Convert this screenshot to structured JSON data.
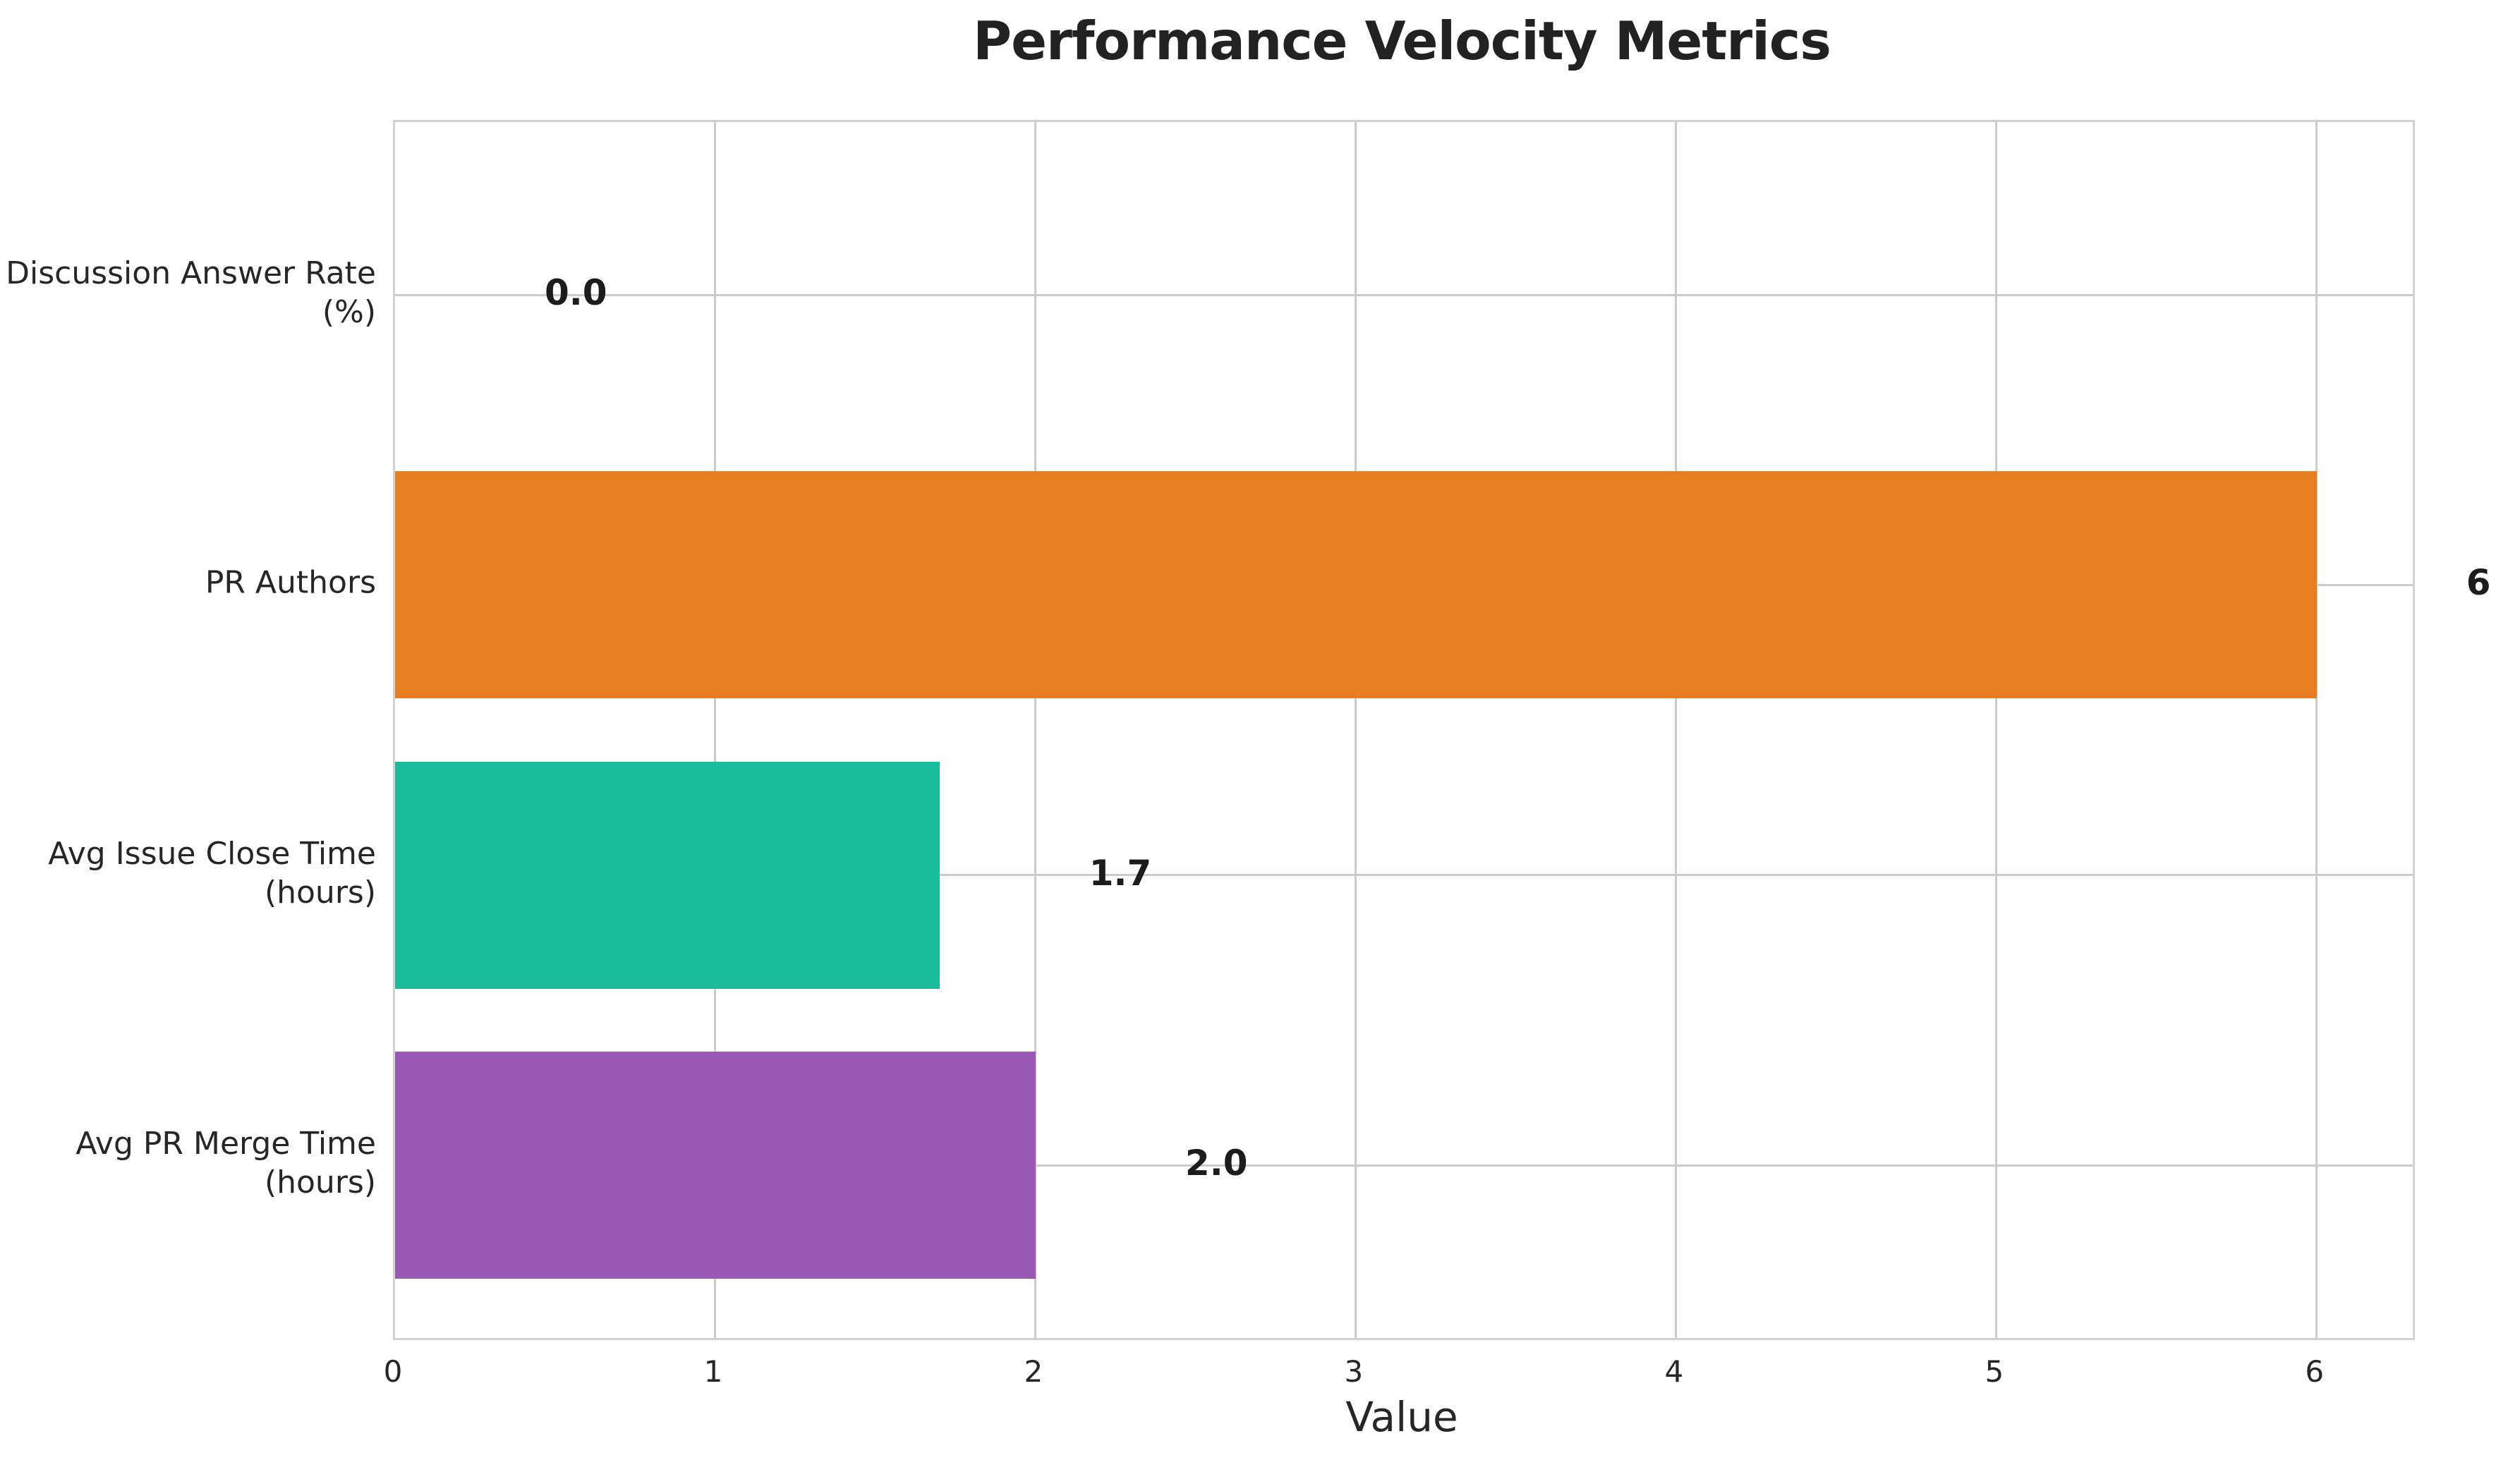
{
  "chart_data": {
    "type": "bar",
    "orientation": "horizontal",
    "title": "Performance Velocity Metrics",
    "xlabel": "Value",
    "categories": [
      "Discussion Answer Rate\n(%)",
      "PR Authors",
      "Avg Issue Close Time\n(hours)",
      "Avg PR Merge Time\n(hours)"
    ],
    "values": [
      0.0,
      6,
      1.7,
      2.0
    ],
    "value_labels": [
      "0.0",
      "6",
      "1.7",
      "2.0"
    ],
    "bar_colors": [
      "#3498db",
      "#e67e22",
      "#1abc9c",
      "#9b59b6"
    ],
    "xticks": [
      0,
      1,
      2,
      3,
      4,
      5,
      6
    ],
    "xtick_labels": [
      "0",
      "1",
      "2",
      "3",
      "4",
      "5",
      "6"
    ],
    "xlim": [
      0,
      6.3
    ],
    "grid": true,
    "grid_color": "#cccccc",
    "spine_color": "#d2d2d2",
    "text_color": "#262626",
    "title_color": "#222222",
    "value_label_color": "#1c1c1c",
    "background_color": "#ffffff"
  }
}
